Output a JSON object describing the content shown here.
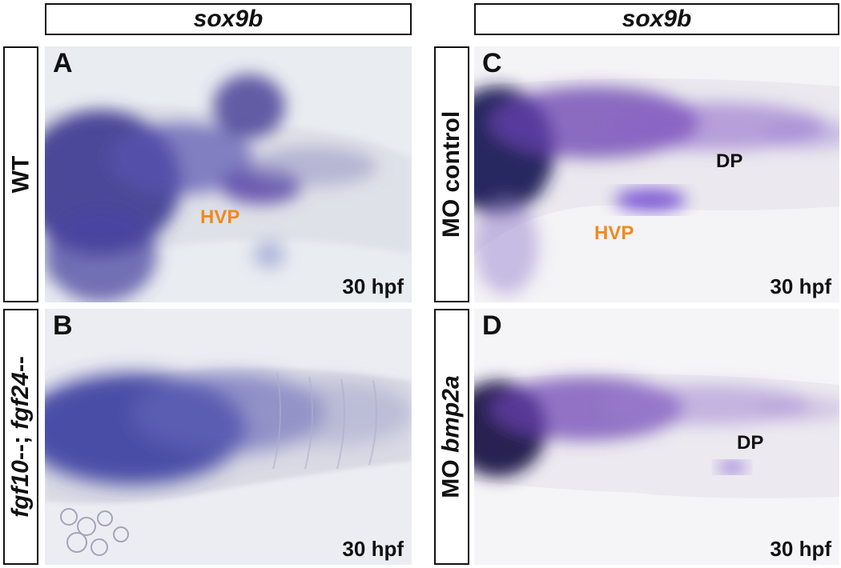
{
  "headers": {
    "left": "sox9b",
    "right": "sox9b"
  },
  "panels": {
    "A": {
      "letter": "A",
      "row_label": "WT",
      "stage": "30 hpf",
      "annotations": {
        "hvp": "HVP"
      }
    },
    "B": {
      "letter": "B",
      "row_label_part1": "fgf10",
      "row_label_part2": "--; ",
      "row_label_part3": "fgf24",
      "row_label_part4": "--",
      "stage": "30 hpf"
    },
    "C": {
      "letter": "C",
      "row_label": "MO control",
      "stage": "30 hpf",
      "annotations": {
        "dp": "DP",
        "hvp": "HVP"
      }
    },
    "D": {
      "letter": "D",
      "row_label_part1": "MO ",
      "row_label_part2": "bmp2a",
      "stage": "30 hpf",
      "annotations": {
        "dp": "DP"
      }
    }
  },
  "colors": {
    "stain_dark": "#2c2a7a",
    "stain_purple": "#6a3fb0",
    "hvp_label": "#f08a1e",
    "label_text": "#111111"
  }
}
